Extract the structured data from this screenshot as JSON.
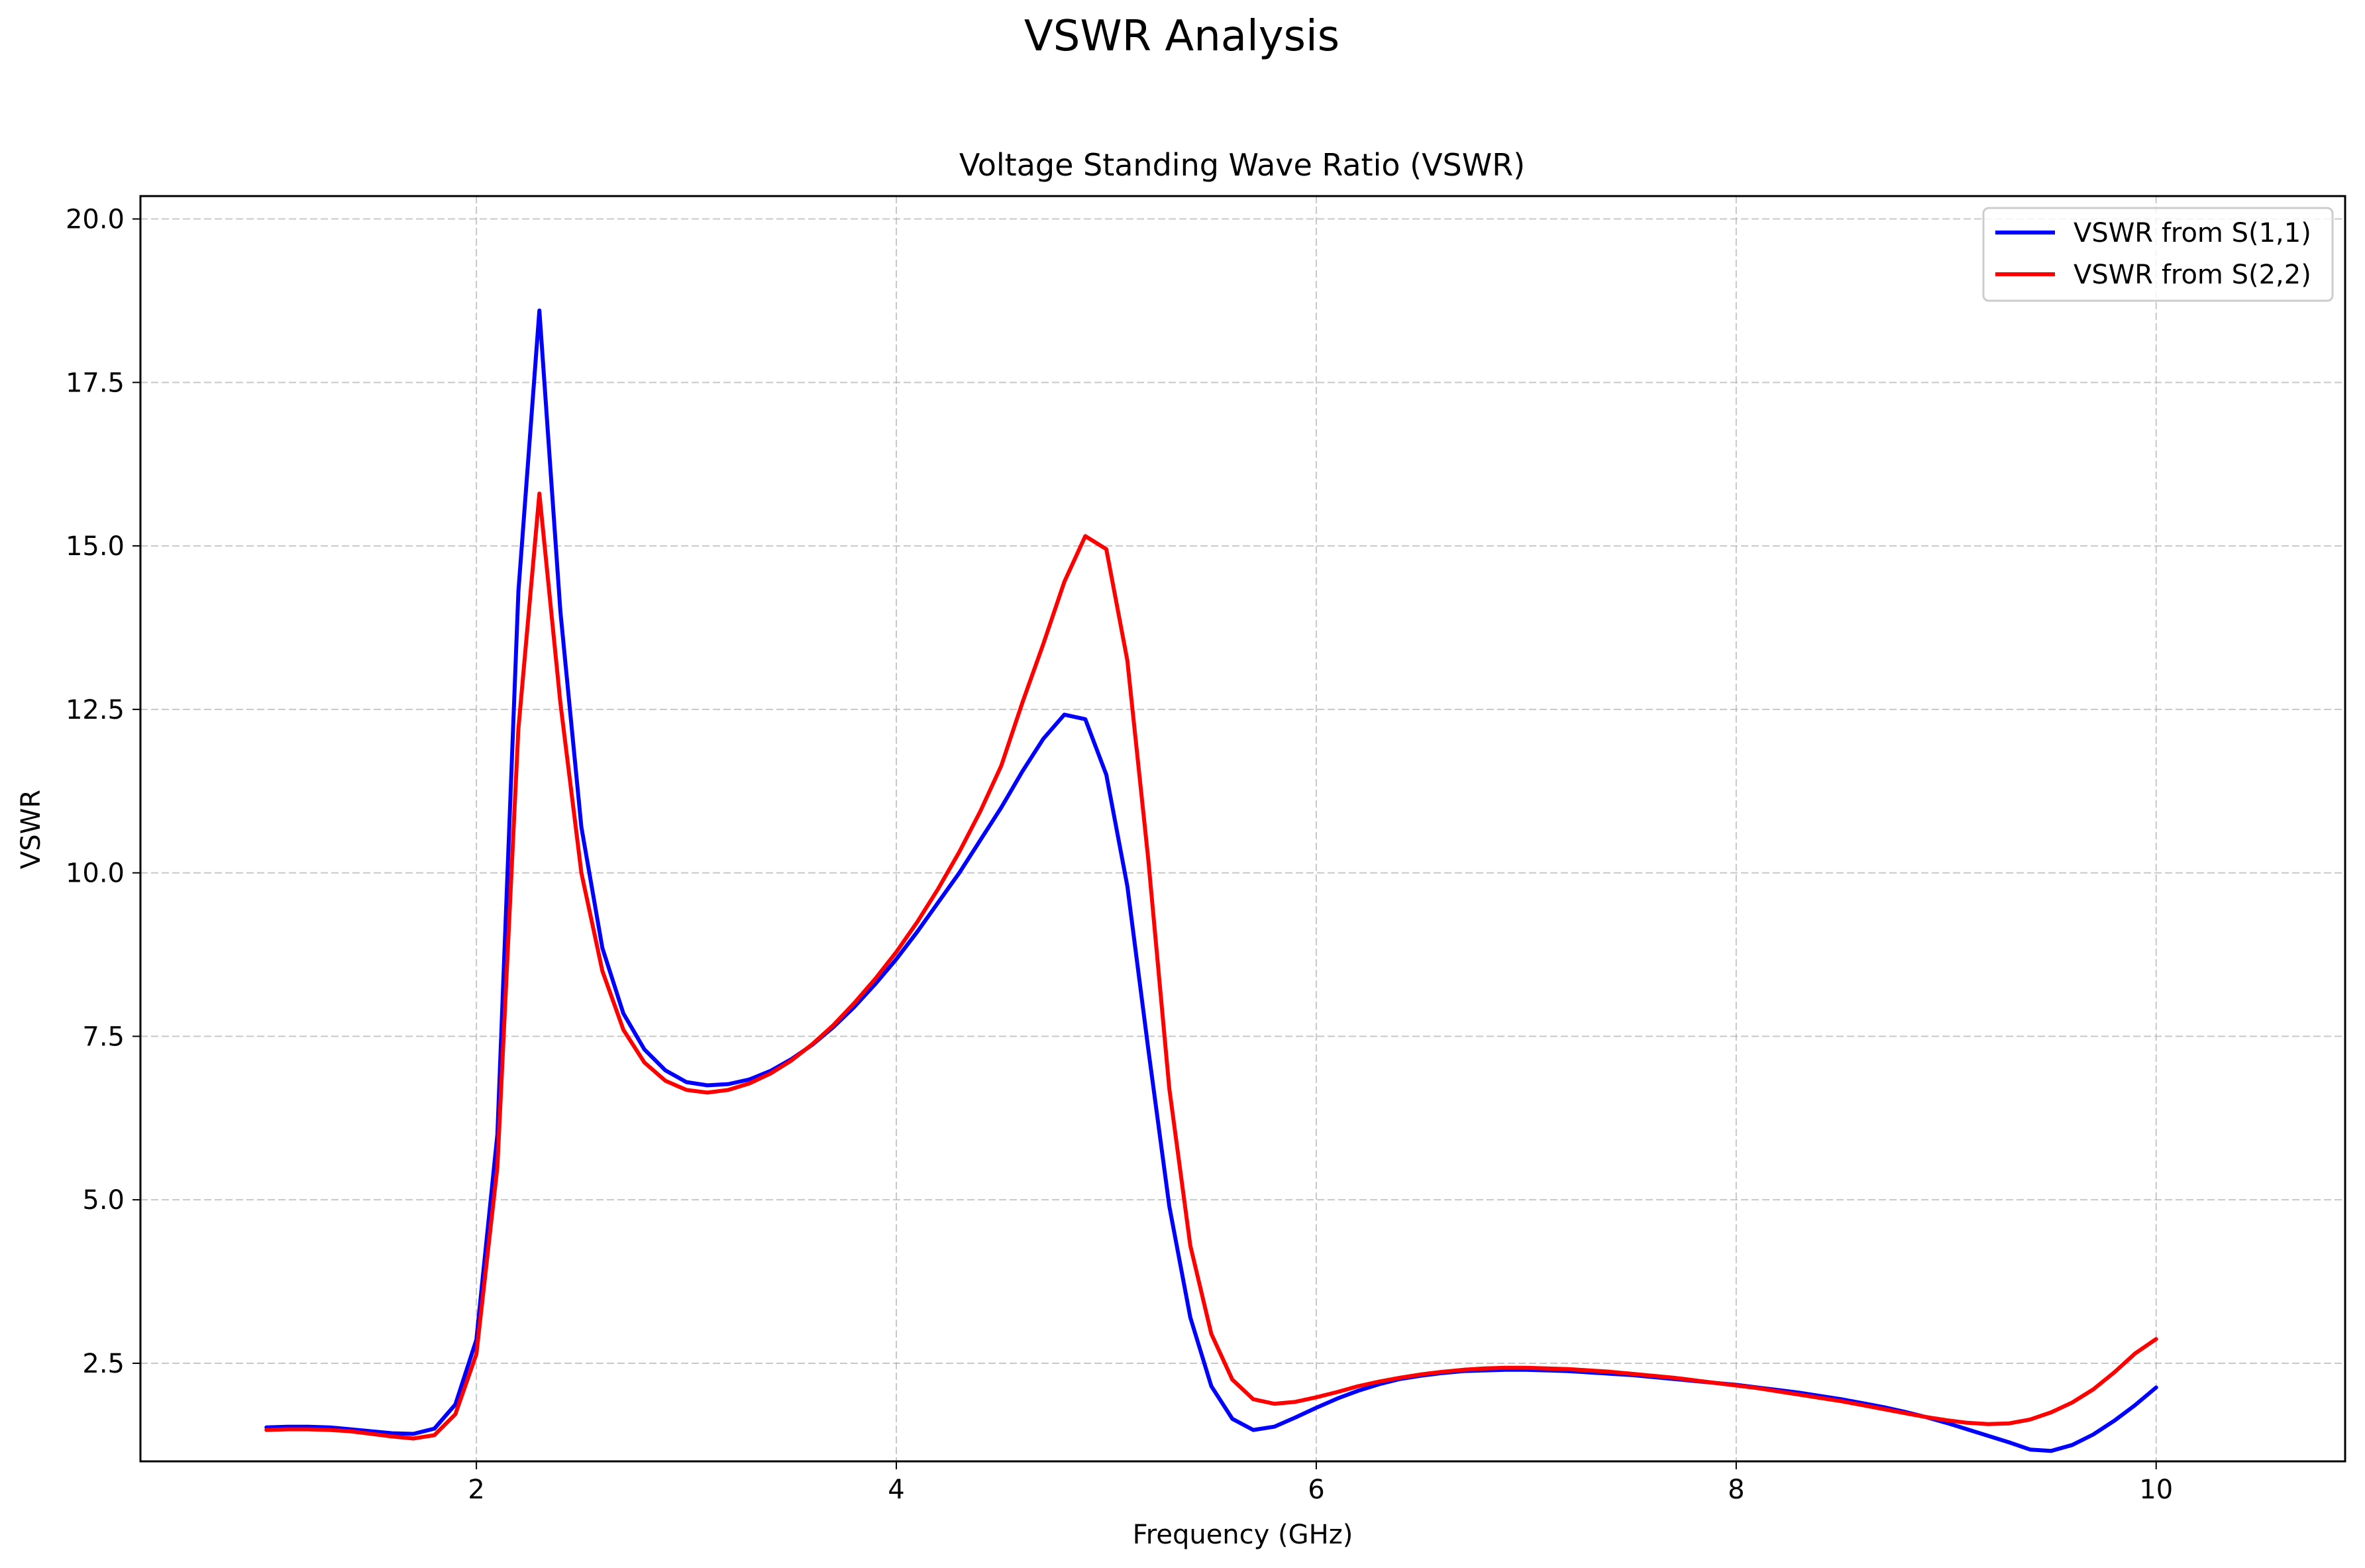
{
  "suptitle": "VSWR Analysis",
  "chart_data": {
    "type": "line",
    "title": "Voltage Standing Wave Ratio (VSWR)",
    "xlabel": "Frequency (GHz)",
    "ylabel": "VSWR",
    "xlim": [
      0.4,
      10.9
    ],
    "ylim": [
      1.0,
      20.35
    ],
    "xticks": [
      2,
      4,
      6,
      8,
      10
    ],
    "xtick_labels": [
      "2",
      "4",
      "6",
      "8",
      "10"
    ],
    "yticks": [
      2.5,
      5.0,
      7.5,
      10.0,
      12.5,
      15.0,
      17.5,
      20.0
    ],
    "ytick_labels": [
      "2.5",
      "5.0",
      "7.5",
      "10.0",
      "12.5",
      "15.0",
      "17.5",
      "20.0"
    ],
    "grid": true,
    "legend_position": "top-right",
    "x": [
      1.0,
      1.1,
      1.2,
      1.3,
      1.4,
      1.5,
      1.6,
      1.7,
      1.8,
      1.9,
      2.0,
      2.1,
      2.2,
      2.3,
      2.4,
      2.5,
      2.6,
      2.7,
      2.8,
      2.9,
      3.0,
      3.1,
      3.2,
      3.3,
      3.4,
      3.5,
      3.6,
      3.7,
      3.8,
      3.9,
      4.0,
      4.1,
      4.2,
      4.3,
      4.4,
      4.5,
      4.6,
      4.7,
      4.8,
      4.9,
      5.0,
      5.1,
      5.2,
      5.3,
      5.4,
      5.5,
      5.6,
      5.7,
      5.8,
      5.9,
      6.0,
      6.1,
      6.2,
      6.3,
      6.4,
      6.5,
      6.6,
      6.7,
      6.8,
      6.9,
      7.0,
      7.1,
      7.2,
      7.3,
      7.4,
      7.5,
      7.6,
      7.7,
      7.8,
      7.9,
      8.0,
      8.1,
      8.2,
      8.3,
      8.4,
      8.5,
      8.6,
      8.7,
      8.8,
      8.9,
      9.0,
      9.1,
      9.2,
      9.3,
      9.4,
      9.5,
      9.6,
      9.7,
      9.8,
      9.9,
      10.0
    ],
    "series": [
      {
        "name": "VSWR from S(1,1)",
        "color": "#0000ff",
        "values": [
          1.52,
          1.53,
          1.53,
          1.52,
          1.49,
          1.46,
          1.43,
          1.42,
          1.5,
          1.87,
          2.86,
          6.0,
          14.3,
          18.6,
          14.0,
          10.7,
          8.85,
          7.85,
          7.3,
          6.98,
          6.8,
          6.75,
          6.77,
          6.84,
          6.97,
          7.15,
          7.37,
          7.64,
          7.95,
          8.3,
          8.68,
          9.1,
          9.55,
          10.0,
          10.5,
          11.0,
          11.55,
          12.05,
          12.42,
          12.35,
          11.5,
          9.8,
          7.3,
          4.9,
          3.2,
          2.15,
          1.65,
          1.48,
          1.53,
          1.67,
          1.82,
          1.96,
          2.08,
          2.18,
          2.26,
          2.31,
          2.35,
          2.38,
          2.39,
          2.4,
          2.4,
          2.39,
          2.38,
          2.36,
          2.34,
          2.32,
          2.29,
          2.26,
          2.23,
          2.2,
          2.17,
          2.13,
          2.09,
          2.05,
          2.0,
          1.95,
          1.89,
          1.83,
          1.76,
          1.68,
          1.59,
          1.49,
          1.39,
          1.29,
          1.18,
          1.16,
          1.25,
          1.41,
          1.62,
          1.86,
          2.13
        ]
      },
      {
        "name": "VSWR from S(2,2)",
        "color": "#ff0000",
        "values": [
          1.48,
          1.49,
          1.49,
          1.48,
          1.46,
          1.42,
          1.38,
          1.35,
          1.4,
          1.72,
          2.64,
          5.5,
          12.2,
          15.8,
          12.6,
          10.0,
          8.5,
          7.6,
          7.1,
          6.82,
          6.68,
          6.64,
          6.68,
          6.78,
          6.93,
          7.13,
          7.38,
          7.67,
          8.01,
          8.38,
          8.79,
          9.25,
          9.76,
          10.32,
          10.94,
          11.64,
          12.6,
          13.5,
          14.45,
          15.15,
          14.95,
          13.25,
          10.2,
          6.7,
          4.3,
          2.95,
          2.25,
          1.95,
          1.88,
          1.91,
          1.98,
          2.06,
          2.15,
          2.22,
          2.28,
          2.33,
          2.37,
          2.4,
          2.42,
          2.43,
          2.43,
          2.42,
          2.41,
          2.39,
          2.37,
          2.34,
          2.31,
          2.28,
          2.24,
          2.2,
          2.16,
          2.12,
          2.07,
          2.02,
          1.97,
          1.92,
          1.86,
          1.8,
          1.74,
          1.68,
          1.63,
          1.59,
          1.57,
          1.58,
          1.64,
          1.75,
          1.9,
          2.1,
          2.36,
          2.65,
          2.87
        ]
      }
    ]
  }
}
